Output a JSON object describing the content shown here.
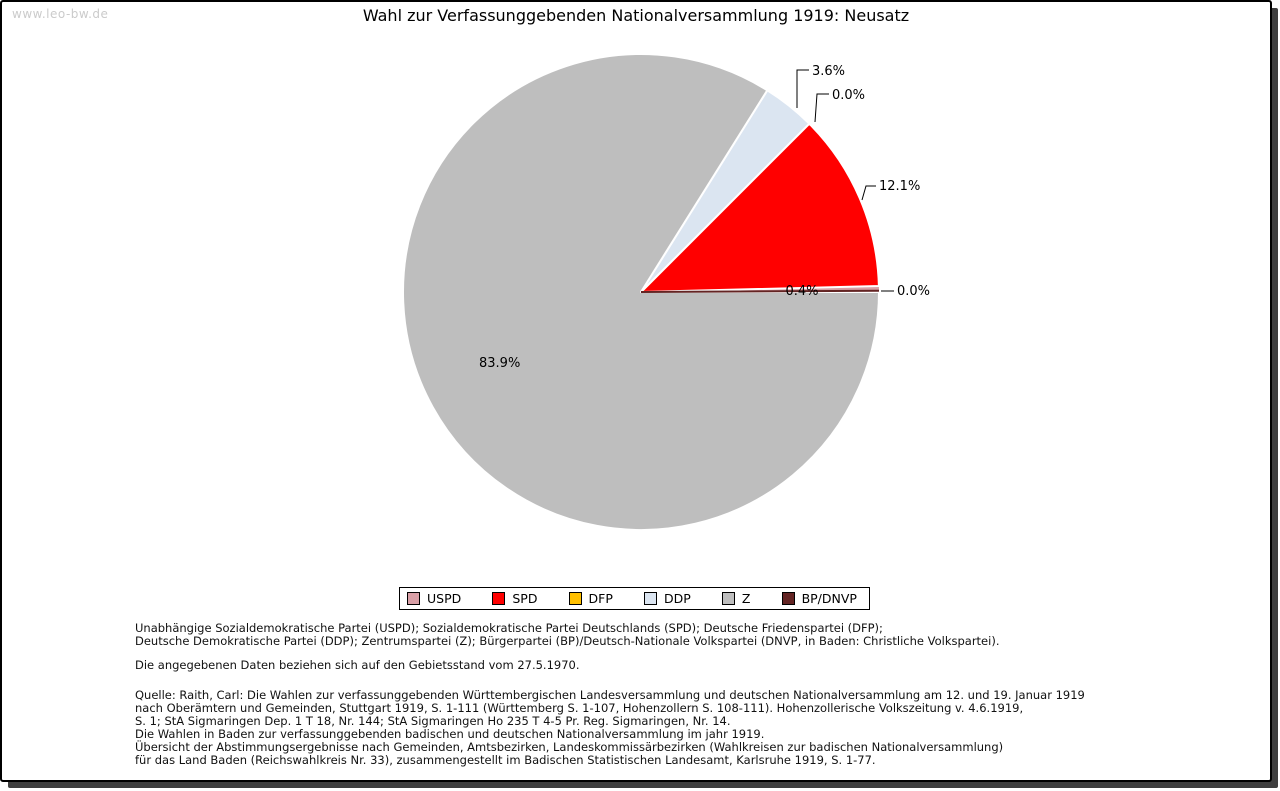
{
  "watermark": "www.leo-bw.de",
  "title": "Wahl zur Verfassunggebenden Nationalversammlung 1919: Neusatz",
  "chart_data": {
    "type": "pie",
    "title": "Wahl zur Verfassunggebenden Nationalversammlung 1919: Neusatz",
    "unit": "%",
    "start_angle_deg": 0,
    "direction": "counterclockwise",
    "legend_position": "bottom",
    "slices": [
      {
        "label": "USPD",
        "value": 0.4,
        "percent_label": "0.4%",
        "color": "#d99fa6"
      },
      {
        "label": "SPD",
        "value": 12.1,
        "percent_label": "12.1%",
        "color": "#ff0000"
      },
      {
        "label": "DFP",
        "value": 0.0,
        "percent_label": "0.0%",
        "color": "#ffc000"
      },
      {
        "label": "DDP",
        "value": 3.6,
        "percent_label": "3.6%",
        "color": "#dbe5f1"
      },
      {
        "label": "Z",
        "value": 83.9,
        "percent_label": "83.9%",
        "color": "#bebebe"
      },
      {
        "label": "BP/DNVP",
        "value": 0.0,
        "percent_label": "0.0%",
        "color": "#632423"
      }
    ]
  },
  "footnotes": {
    "party_names_line1": "Unabhängige Sozialdemokratische Partei (USPD); Sozialdemokratische Partei Deutschlands (SPD); Deutsche Friedenspartei (DFP);",
    "party_names_line2": "Deutsche Demokratische Partei (DDP); Zentrumspartei (Z); Bürgerpartei (BP)/Deutsch-Nationale Volkspartei (DNVP, in Baden: Christliche Volkspartei).",
    "data_note": "Die angegebenen Daten beziehen sich auf den Gebietsstand vom 27.5.1970.",
    "source_lines": [
      "Quelle: Raith, Carl: Die Wahlen zur verfassunggebenden Württembergischen Landesversammlung und deutschen Nationalversammlung am 12. und 19. Januar 1919",
      "nach Oberämtern und Gemeinden, Stuttgart 1919, S. 1-111 (Württemberg S. 1-107, Hohenzollern S. 108-111). Hohenzollerische Volkszeitung v. 4.6.1919,",
      "S. 1; StA Sigmaringen Dep. 1 T 18, Nr. 144; StA Sigmaringen Ho 235 T 4-5 Pr. Reg. Sigmaringen, Nr. 14.",
      "Die Wahlen in Baden zur verfassunggebenden badischen und deutschen Nationalversammlung im jahr 1919.",
      "Übersicht der Abstimmungsergebnisse nach Gemeinden, Amtsbezirken, Landeskommissärbezirken (Wahlkreisen zur badischen Nationalversammlung)",
      "für das Land Baden (Reichswahlkreis Nr. 33), zusammengestellt im Badischen Statistischen Landesamt, Karlsruhe 1919, S. 1-77."
    ]
  }
}
